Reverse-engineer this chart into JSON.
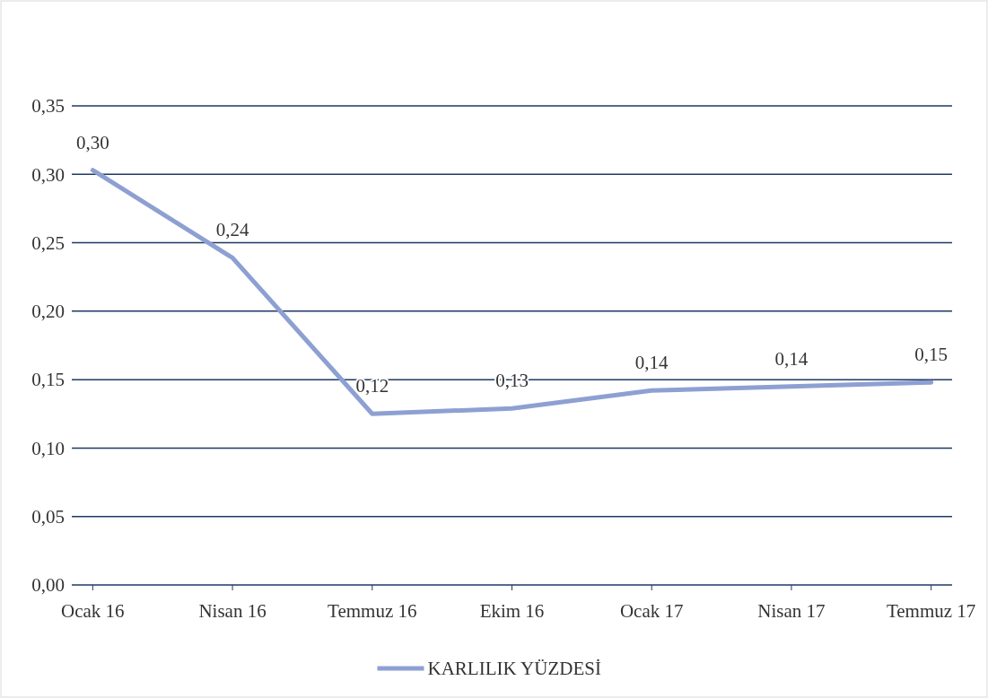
{
  "chart_data": {
    "type": "line",
    "categories": [
      "Ocak 16",
      "Nisan 16",
      "Temmuz 16",
      "Ekim 16",
      "Ocak 17",
      "Nisan 17",
      "Temmuz 17"
    ],
    "series": [
      {
        "name": "KARLILIK YÜZDESİ",
        "color": "#8ea0d2",
        "values": [
          0.303,
          0.239,
          0.125,
          0.129,
          0.142,
          0.145,
          0.148
        ],
        "value_labels": [
          "0,30",
          "0,24",
          "0,12",
          "0,13",
          "0,14",
          "0,14",
          "0,15"
        ]
      }
    ],
    "ylim": [
      0,
      0.35
    ],
    "yticks": [
      {
        "value": 0,
        "label": "0,00"
      },
      {
        "value": 0.05,
        "label": "0,05"
      },
      {
        "value": 0.1,
        "label": "0,10"
      },
      {
        "value": 0.15,
        "label": "0,15"
      },
      {
        "value": 0.2,
        "label": "0,20"
      },
      {
        "value": 0.25,
        "label": "0,25"
      },
      {
        "value": 0.3,
        "label": "0,30"
      },
      {
        "value": 0.35,
        "label": "0,35"
      }
    ],
    "grid": "y",
    "legend": "bottom",
    "marker": "none",
    "line_style": "solid"
  }
}
